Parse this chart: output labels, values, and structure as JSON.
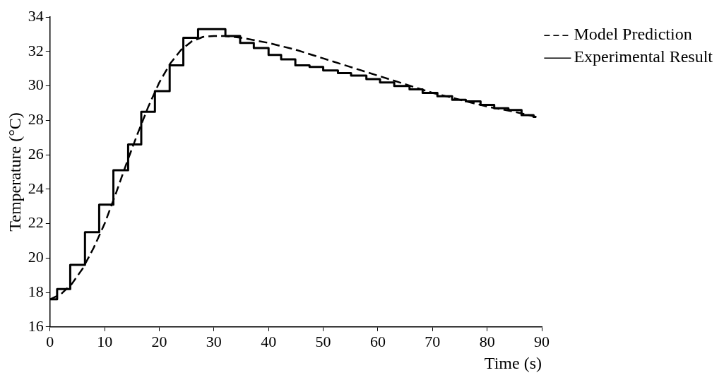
{
  "chart_data": {
    "type": "line",
    "xlabel": "Time (s)",
    "ylabel": "Temperature (°C)",
    "xlim": [
      0,
      90
    ],
    "xticks": [
      0,
      10,
      20,
      30,
      40,
      50,
      60,
      70,
      80,
      90
    ],
    "ylim": [
      16,
      34
    ],
    "yticks": [
      16,
      18,
      20,
      22,
      24,
      26,
      28,
      30,
      32,
      34
    ],
    "grid": false,
    "legend": "top right",
    "marker": "none",
    "series": [
      {
        "name": "Model Prediction",
        "type": "line",
        "line_style": "dashed",
        "color": "#000000",
        "x": [
          0,
          2,
          4,
          6,
          8,
          10,
          12,
          14,
          16,
          18,
          20,
          22,
          24,
          26,
          28,
          30,
          32,
          35,
          40,
          45,
          50,
          55,
          60,
          65,
          70,
          75,
          80,
          85,
          89
        ],
        "values": [
          17.6,
          17.9,
          18.5,
          19.4,
          20.6,
          22.0,
          23.7,
          25.5,
          27.2,
          28.8,
          30.2,
          31.3,
          32.1,
          32.6,
          32.85,
          32.9,
          32.9,
          32.8,
          32.5,
          32.1,
          31.6,
          31.1,
          30.6,
          30.1,
          29.6,
          29.2,
          28.8,
          28.5,
          28.2
        ]
      },
      {
        "name": "Experimental Result",
        "type": "step",
        "line_style": "solid",
        "color": "#000000",
        "x": [
          0,
          1.3,
          3.7,
          6.4,
          9.0,
          11.6,
          14.3,
          16.7,
          19.2,
          21.9,
          24.4,
          27.1,
          32.1,
          34.8,
          37.3,
          40.0,
          42.3,
          44.9,
          47.5,
          50.0,
          52.7,
          55.1,
          57.9,
          60.4,
          63.0,
          65.8,
          68.2,
          70.9,
          73.6,
          76.1,
          78.8,
          81.3,
          83.9,
          86.3,
          88.5,
          89
        ],
        "values": [
          17.6,
          18.2,
          19.6,
          21.5,
          23.1,
          25.1,
          26.6,
          28.5,
          29.7,
          31.2,
          32.8,
          33.3,
          32.9,
          32.5,
          32.2,
          31.8,
          31.55,
          31.2,
          31.1,
          30.9,
          30.75,
          30.6,
          30.4,
          30.2,
          30.0,
          29.8,
          29.6,
          29.4,
          29.2,
          29.1,
          28.9,
          28.7,
          28.6,
          28.3,
          28.2,
          28.2
        ]
      }
    ]
  }
}
